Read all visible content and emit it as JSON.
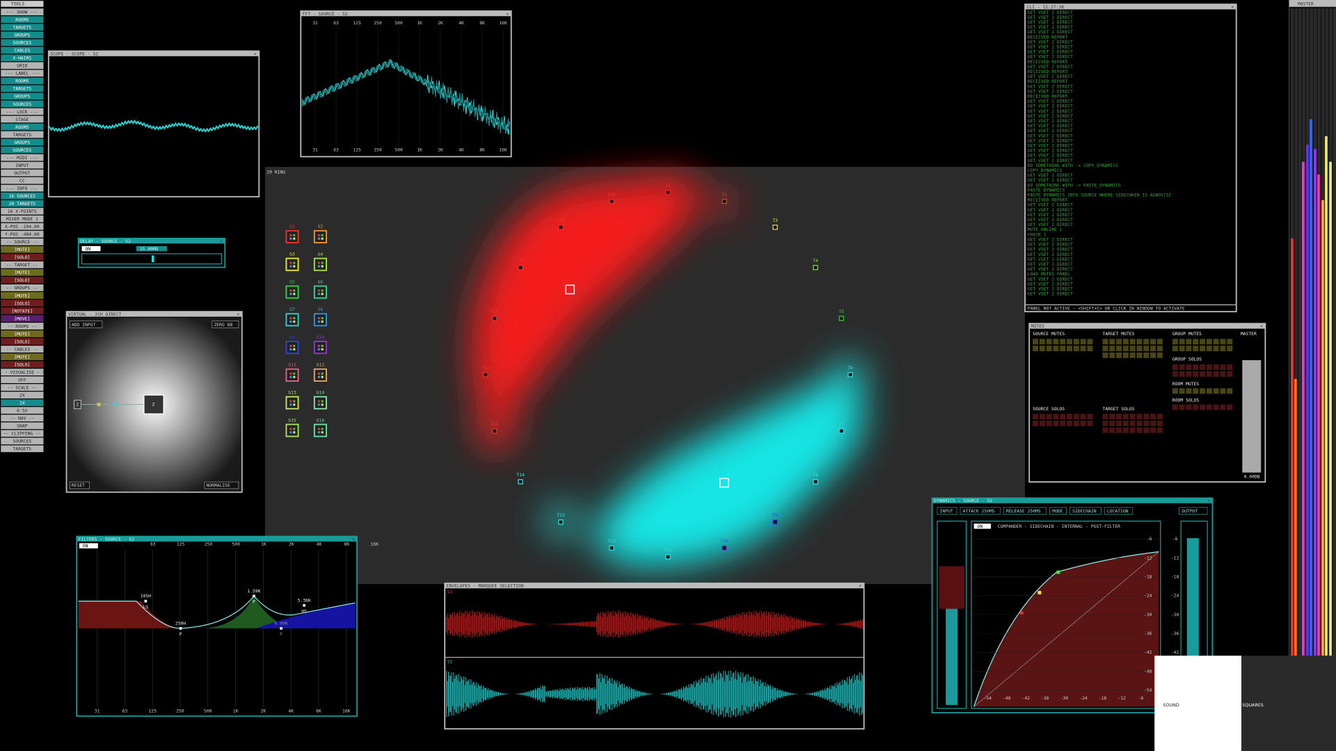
{
  "tools": {
    "title": "TOOLS",
    "items": [
      {
        "label": "--- SHOW ---",
        "color": "#b4b4b4"
      },
      {
        "label": "ROOMS",
        "color": "#148c8c"
      },
      {
        "label": "TARGETS",
        "color": "#148c8c"
      },
      {
        "label": "GROUPS",
        "color": "#148c8c"
      },
      {
        "label": "SOURCES",
        "color": "#148c8c"
      },
      {
        "label": "CABLES",
        "color": "#148c8c"
      },
      {
        "label": "X-HAIRS",
        "color": "#148c8c"
      },
      {
        "label": "GRID",
        "color": "#b4b4b4"
      },
      {
        "label": "--- LABEL ---",
        "color": "#b4b4b4"
      },
      {
        "label": "ROOMS",
        "color": "#148c8c"
      },
      {
        "label": "TARGETS",
        "color": "#148c8c"
      },
      {
        "label": "GROUPS",
        "color": "#148c8c"
      },
      {
        "label": "SOURCES",
        "color": "#148c8c"
      },
      {
        "label": "--- LOCK ---",
        "color": "#b4b4b4"
      },
      {
        "label": "STAGE",
        "color": "#b4b4b4"
      },
      {
        "label": "ROOMS",
        "color": "#148c8c"
      },
      {
        "label": "TARGETS",
        "color": "#b4b4b4"
      },
      {
        "label": "GROUPS",
        "color": "#148c8c"
      },
      {
        "label": "SOURCES",
        "color": "#148c8c"
      },
      {
        "label": "--- MIDI ---",
        "color": "#b4b4b4"
      },
      {
        "label": "INPUT",
        "color": "#b4b4b4"
      },
      {
        "label": "OUTPUT",
        "color": "#b4b4b4"
      },
      {
        "label": "CC",
        "color": "#b4b4b4"
      },
      {
        "label": "--- INFO ---",
        "color": "#b4b4b4"
      },
      {
        "label": "16 SOURCES",
        "color": "#148c8c"
      },
      {
        "label": "20 TARGETS",
        "color": "#148c8c"
      },
      {
        "label": "16 X-POINTS",
        "color": "#b4b4b4"
      },
      {
        "label": "MIXER MODE 1",
        "color": "#b4b4b4"
      },
      {
        "label": "X-POS -104.00",
        "color": "#b4b4b4"
      },
      {
        "label": "Y-POS -484.00",
        "color": "#b4b4b4"
      },
      {
        "label": "-- SOURCE --",
        "color": "#b4b4b4"
      },
      {
        "label": "[MUTE]",
        "color": "#6e6a1e"
      },
      {
        "label": "[SOLO]",
        "color": "#6e1e1e"
      },
      {
        "label": "-- TARGET --",
        "color": "#b4b4b4"
      },
      {
        "label": "[MUTE]",
        "color": "#6e6a1e"
      },
      {
        "label": "[SOLO]",
        "color": "#6e1e1e"
      },
      {
        "label": "-- GROUPS --",
        "color": "#b4b4b4"
      },
      {
        "label": "[MUTE]",
        "color": "#6e6a1e"
      },
      {
        "label": "[SOLO]",
        "color": "#6e1e1e"
      },
      {
        "label": "[ROTATE]",
        "color": "#6e1e1e"
      },
      {
        "label": "[MOVE]",
        "color": "#5a1e6e"
      },
      {
        "label": "-- ROOMS --",
        "color": "#b4b4b4"
      },
      {
        "label": "[MUTE]",
        "color": "#6e6a1e"
      },
      {
        "label": "[SOLO]",
        "color": "#6e1e1e"
      },
      {
        "label": "-- CABLES --",
        "color": "#b4b4b4"
      },
      {
        "label": "[MUTE]",
        "color": "#6e6a1e"
      },
      {
        "label": "[SOLO]",
        "color": "#6e1e1e"
      },
      {
        "label": "- VISUALISE -",
        "color": "#b4b4b4"
      },
      {
        "label": "OFF",
        "color": "#b4b4b4"
      },
      {
        "label": "-- SCALE --",
        "color": "#b4b4b4"
      },
      {
        "label": "2X",
        "color": "#b4b4b4"
      },
      {
        "label": "1X",
        "color": "#148c8c"
      },
      {
        "label": "0.5X",
        "color": "#b4b4b4"
      },
      {
        "label": "-- NAV --",
        "color": "#b4b4b4"
      },
      {
        "label": "SNAP",
        "color": "#b4b4b4"
      },
      {
        "label": "-- CLIPPING --",
        "color": "#b4b4b4"
      },
      {
        "label": "SOURCES",
        "color": "#b4b4b4"
      },
      {
        "label": "TARGETS",
        "color": "#b4b4b4"
      }
    ]
  },
  "scope": {
    "title": "SCOPE - SCOPE - S2"
  },
  "fft": {
    "title": "FFT - SOURCE - S2",
    "freqs": [
      "31",
      "63",
      "125",
      "250",
      "500",
      "1K",
      "2K",
      "4K",
      "8K",
      "16K"
    ]
  },
  "ring": {
    "title": "20 RING",
    "targets": [
      {
        "label": "T1",
        "color": "#ff3030"
      },
      {
        "label": "T2",
        "color": "#ff3030"
      },
      {
        "label": "T3",
        "color": "#e8e840"
      },
      {
        "label": "T4",
        "color": "#8ce040"
      },
      {
        "label": "T5",
        "color": "#40d040"
      },
      {
        "label": "T6",
        "color": "#30e8e8"
      },
      {
        "label": "T7",
        "color": "#30e8e8"
      },
      {
        "label": "T8",
        "color": "#30e8e8"
      },
      {
        "label": "T9",
        "color": "#4040ff"
      },
      {
        "label": "T10",
        "color": "#6040ff"
      },
      {
        "label": "T11",
        "color": "#30e8e8"
      },
      {
        "label": "T12",
        "color": "#30e8e8"
      },
      {
        "label": "T13",
        "color": "#30e8e8"
      },
      {
        "label": "T14",
        "color": "#30e8e8"
      },
      {
        "label": "T15",
        "color": "#ff3030"
      },
      {
        "label": "T16",
        "color": "#ff3030"
      },
      {
        "label": "T17",
        "color": "#ff3030"
      },
      {
        "label": "T18",
        "color": "#ff3030"
      },
      {
        "label": "T19",
        "color": "#ff3030"
      },
      {
        "label": "T20",
        "color": "#ff3030"
      }
    ],
    "groups": [
      {
        "label": "G1",
        "color": "#e83030"
      },
      {
        "label": "G2",
        "color": "#e89030"
      },
      {
        "label": "G3",
        "color": "#e8e030"
      },
      {
        "label": "G4",
        "color": "#a0e030"
      },
      {
        "label": "G5",
        "color": "#30d040"
      },
      {
        "label": "G6",
        "color": "#30d090"
      },
      {
        "label": "G7",
        "color": "#30c8d0"
      },
      {
        "label": "G8",
        "color": "#3090e0"
      },
      {
        "label": "G9",
        "color": "#3040e0"
      },
      {
        "label": "G10",
        "color": "#9030e0"
      },
      {
        "label": "G11",
        "color": "#e06080"
      },
      {
        "label": "G12",
        "color": "#e0a060"
      },
      {
        "label": "G13",
        "color": "#c0e060"
      },
      {
        "label": "G14",
        "color": "#80e0a0"
      },
      {
        "label": "G15",
        "color": "#a0e060"
      },
      {
        "label": "G16",
        "color": "#60e0a0"
      }
    ]
  },
  "delay": {
    "title": "DELAY - SOURCE - S2",
    "on": "ON",
    "value": "15.00MS"
  },
  "virtual": {
    "title": "VIRTUAL - 2CH DIRECT",
    "add": "ADD INPUT",
    "zero": "ZERO DB",
    "reset": "RESET",
    "normalise": "NORMALISE",
    "input": "2",
    "output": "2"
  },
  "filters": {
    "title": "FILTERS - SOURCE - S2",
    "on": "ON",
    "freqs": [
      "31",
      "63",
      "125",
      "250",
      "500",
      "1K",
      "2K",
      "4K",
      "8K",
      "16K"
    ],
    "bands": [
      {
        "freq": "105H",
        "kind": "LS"
      },
      {
        "freq": "250H",
        "kind": "P"
      },
      {
        "freq": "1.59K",
        "kind": "P"
      },
      {
        "freq": "5.36K",
        "kind": "HS"
      },
      {
        "freq": "6.00K",
        "kind": "P"
      }
    ]
  },
  "envelopes": {
    "title": "ENVELOPES - MARQUEE SELECTION",
    "tracks": [
      "S1",
      "S2"
    ]
  },
  "cli": {
    "title": "CLI - 15:27:38",
    "lines": [
      "GET VSET 2 DIRECT",
      "GET VSET 2 DIRECT",
      "GET VSET 2 DIRECT",
      "GET VSET 2 DIRECT",
      "GET VSET 2 DIRECT",
      "RECEIVED REPORT",
      "GET VSET 2 DIRECT",
      "GET VSET 2 DIRECT",
      "GET VSET 2 DIRECT",
      "GET VSET 2 DIRECT",
      "RECEIVED REPORT",
      "GET VSET 2 DIRECT",
      "RECEIVED REPORT",
      "GET VSET 2 DIRECT",
      "RECEIVED REPORT",
      "GET VSET 2 DIRECT",
      "GET VSET 2 DIRECT",
      "RECEIVED REPORT",
      "GET VSET 2 DIRECT",
      "GET VSET 2 DIRECT",
      "GET VSET 2 DIRECT",
      "GET VSET 2 DIRECT",
      "GET VSET 2 DIRECT",
      "GET VSET 2 DIRECT",
      "GET VSET 2 DIRECT",
      "GET VSET 2 DIRECT",
      "GET VSET 2 DIRECT",
      "GET VSET 2 DIRECT",
      "GET VSET 2 DIRECT",
      "GET VSET 2 DIRECT",
      "GET VSET 2 DIRECT",
      "DO SOMETHING WITH -> COPY_DYNAMICS",
      "COPY_DYNAMICS",
      "GET VSET 2 DIRECT",
      "GET VSET 2 DIRECT",
      "DO SOMETHING WITH -> PASTE_DYNAMICS",
      "PASTE DYNAMICS",
      "PASTE DYNAMICS INTO SOURCE WHERE SIDECHAIN IS AGNOSTIC",
      "RECEIVED REPORT",
      "GET VSET 2 DIRECT",
      "GET VSET 2 DIRECT",
      "GET VSET 2 DIRECT",
      "GET VSET 2 DIRECT",
      "GET VSET 2 DIRECT",
      "MUTE ONLINE 1",
      "CHECK 1",
      "GET VSET 2 DIRECT",
      "GET VSET 2 DIRECT",
      "GET VSET 2 DIRECT",
      "GET VSET 2 DIRECT",
      "GET VSET 2 DIRECT",
      "GET VSET 2 DIRECT",
      "GET VSET 2 DIRECT",
      "LOAD MUTES PANEL",
      "GET VSET 2 DIRECT",
      "GET VSET 2 DIRECT",
      "GET VSET 2 DIRECT",
      "GET VSET 2 DIRECT"
    ],
    "footer": "PANEL NOT ACTIVE - <SHIFT+C> OR CLICK IN WINDOW TO ACTIVATE"
  },
  "mutes": {
    "title": "MUTES",
    "source_mutes": "SOURCE MUTES",
    "target_mutes": "TARGET MUTES",
    "group_mutes": "GROUP MUTES",
    "master": "MASTER",
    "group_solos": "GROUP SOLOS",
    "room_mutes": "ROOM MUTES",
    "room_solos": "ROOM SOLOS",
    "source_solos": "SOURCE SOLOS",
    "target_solos": "TARGET SOLOS",
    "level": "0.00DB"
  },
  "dynamics": {
    "title": "DYNAMICS - SOURCE - S2",
    "buttons": [
      "INPUT",
      "ATTACK 250MS",
      "RELEASE 250MS",
      "MODE",
      "SIDECHAIN",
      "LOCATION"
    ],
    "output": "OUTPUT",
    "on": "ON",
    "mode": "COMPANDER - SIDECHAIN - INTERNAL - POST-FILTER",
    "levels": [
      -6,
      -12,
      -18,
      -24,
      -30,
      -36,
      -42,
      -48,
      -54
    ]
  },
  "master": {
    "title": "MASTER"
  },
  "logo": {
    "left": "SOUND",
    "right": "SQUARES"
  }
}
